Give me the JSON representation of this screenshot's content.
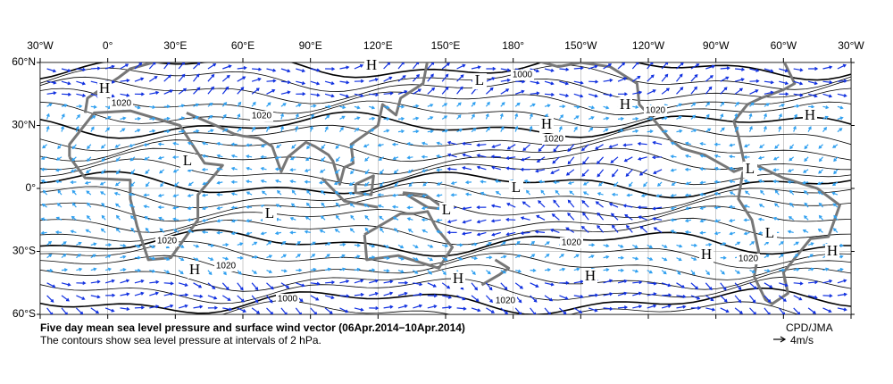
{
  "map": {
    "lon_labels": [
      "30°W",
      "0°",
      "30°E",
      "60°E",
      "90°E",
      "120°E",
      "150°E",
      "180°",
      "150°W",
      "120°W",
      "90°W",
      "60°W",
      "30°W"
    ],
    "lat_labels": [
      "60°N",
      "30°N",
      "0°",
      "30°S",
      "60°S"
    ],
    "pressure_centers": [
      "H",
      "H",
      "L",
      "H",
      "H",
      "H",
      "L",
      "L",
      "L",
      "L",
      "L",
      "L",
      "H",
      "H",
      "H",
      "H",
      "H"
    ],
    "contour_labels": [
      "1020",
      "1020",
      "1000",
      "1020",
      "1020",
      "1020",
      "1020",
      "1020",
      "1020",
      "1000",
      "1020"
    ],
    "title": "Five day mean sea level pressure and surface wind vector (06Apr.2014−10Apr.2014)",
    "subtitle": "The contours show sea level pressure at intervals of 2 hPa.",
    "credit": "CPD/JMA",
    "scale_label": "4m/s"
  }
}
